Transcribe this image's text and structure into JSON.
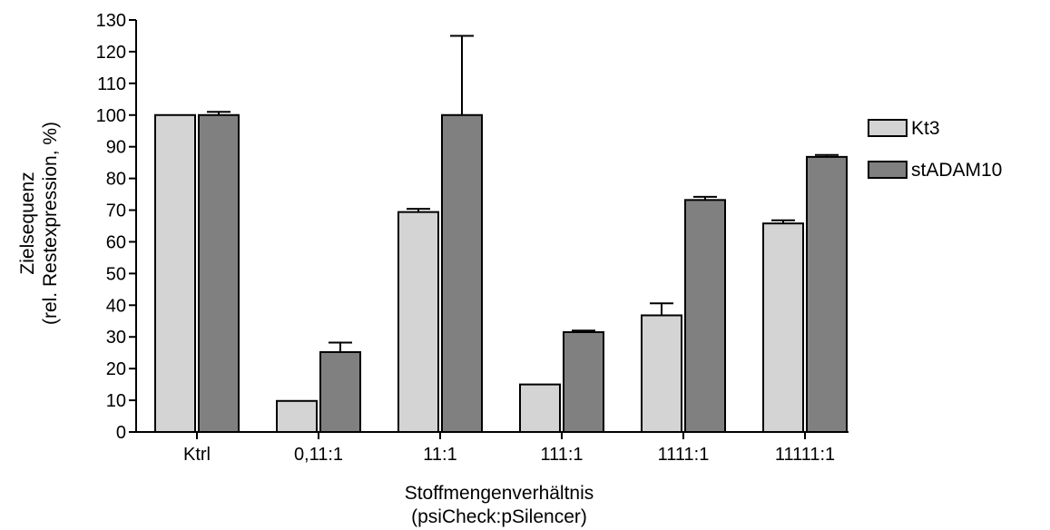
{
  "chart_data": {
    "type": "bar",
    "title": "",
    "categories": [
      "Ktrl",
      "0,11:1",
      "11:1",
      "111:1",
      "1111:1",
      "11111:1"
    ],
    "series": [
      {
        "name": "Kt3",
        "color": "#d4d4d4",
        "values": [
          100,
          9.8,
          69.4,
          15,
          36.8,
          65.8
        ],
        "errors": [
          0,
          0,
          1,
          0,
          3.8,
          1
        ]
      },
      {
        "name": "stADAM10",
        "color": "#808080",
        "values": [
          100,
          25.2,
          100,
          31.5,
          73.2,
          86.8
        ],
        "errors": [
          1,
          3,
          25,
          0.5,
          1,
          0.6
        ]
      }
    ],
    "ylabel_lines": [
      "Zielsequenz",
      "(rel. Restexpression, %)"
    ],
    "xlabel_lines": [
      "Stoffmengenverhältnis",
      "(psiCheck:pSilencer)"
    ],
    "ylim": [
      0,
      130
    ],
    "yticks": [
      0,
      10,
      20,
      30,
      40,
      50,
      60,
      70,
      80,
      90,
      100,
      110,
      120,
      130
    ],
    "grid": false,
    "legend_position": "right"
  }
}
